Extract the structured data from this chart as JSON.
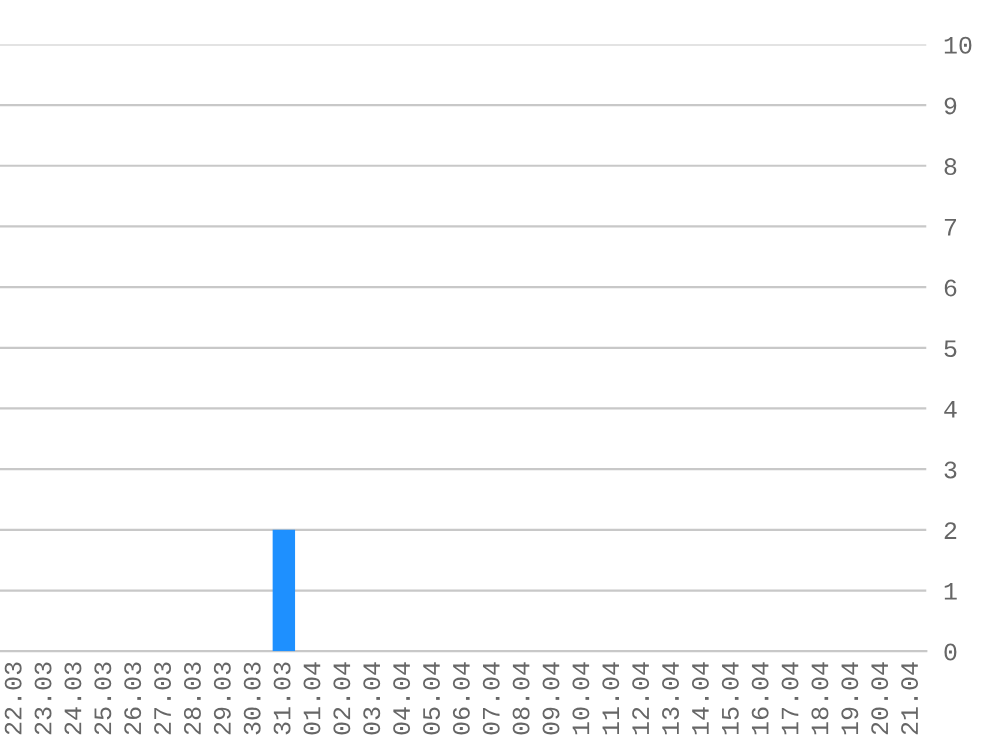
{
  "chart_data": {
    "type": "bar",
    "categories": [
      "22.03",
      "23.03",
      "24.03",
      "25.03",
      "26.03",
      "27.03",
      "28.03",
      "29.03",
      "30.03",
      "31.03",
      "01.04",
      "02.04",
      "03.04",
      "04.04",
      "05.04",
      "06.04",
      "07.04",
      "08.04",
      "09.04",
      "10.04",
      "11.04",
      "12.04",
      "13.04",
      "14.04",
      "15.04",
      "16.04",
      "17.04",
      "18.04",
      "19.04",
      "20.04",
      "21.04"
    ],
    "values": [
      0,
      0,
      0,
      0,
      0,
      0,
      0,
      0,
      0,
      2,
      0,
      0,
      0,
      0,
      0,
      0,
      0,
      0,
      0,
      0,
      0,
      0,
      0,
      0,
      0,
      0,
      0,
      0,
      0,
      0,
      0
    ],
    "color": "#1e90ff",
    "ylim": [
      0,
      10
    ],
    "yticks": [
      0,
      1,
      2,
      3,
      4,
      5,
      6,
      7,
      8,
      9,
      10
    ],
    "grid": "y"
  }
}
